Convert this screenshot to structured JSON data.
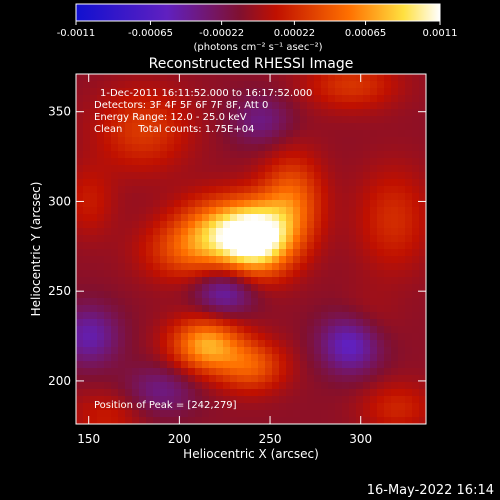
{
  "chart_data": {
    "type": "heatmap",
    "title": "Reconstructed RHESSI Image",
    "xlabel": "Heliocentric X (arcsec)",
    "ylabel": "Heliocentric Y (arcsec)",
    "xlim": [
      143,
      336
    ],
    "ylim": [
      176,
      371
    ],
    "x_ticks": [
      150,
      200,
      250,
      300
    ],
    "y_ticks": [
      200,
      250,
      300,
      350
    ],
    "colorbar": {
      "unit_label": "(photons cm⁻² s⁻¹ asec⁻²)",
      "range": [
        -0.0011,
        0.0011
      ],
      "ticks": [
        "-0.0011",
        "-0.00065",
        "-0.00022",
        "0.00022",
        "0.00065",
        "0.0011"
      ],
      "colormap": "blue-purple-red-yellow-white"
    },
    "annotations": [
      "1-Dec-2011 16:11:52.000 to 16:17:52.000",
      "Detectors: 3F 4F 5F 6F 7F 8F, Att 0",
      "Energy Range: 12.0 - 25.0 keV",
      "Clean     Total counts: 1.75E+04"
    ],
    "peak_label": "Position of Peak = [242,279]",
    "peak": [
      242,
      279
    ],
    "sources": [
      {
        "x": 242,
        "y": 279,
        "sx": 14,
        "sy": 14,
        "amp": 1.0
      },
      {
        "x": 220,
        "y": 285,
        "sx": 16,
        "sy": 13,
        "amp": 0.45
      },
      {
        "x": 262,
        "y": 300,
        "sx": 12,
        "sy": 18,
        "amp": 0.45
      },
      {
        "x": 205,
        "y": 272,
        "sx": 18,
        "sy": 12,
        "amp": 0.35
      },
      {
        "x": 215,
        "y": 220,
        "sx": 14,
        "sy": 11,
        "amp": 0.65
      },
      {
        "x": 240,
        "y": 208,
        "sx": 13,
        "sy": 10,
        "amp": 0.4
      },
      {
        "x": 180,
        "y": 340,
        "sx": 18,
        "sy": 16,
        "amp": 0.3
      },
      {
        "x": 295,
        "y": 365,
        "sx": 18,
        "sy": 10,
        "amp": 0.28
      },
      {
        "x": 318,
        "y": 290,
        "sx": 14,
        "sy": 20,
        "amp": 0.25
      },
      {
        "x": 300,
        "y": 230,
        "sx": 12,
        "sy": 12,
        "amp": 0.22
      },
      {
        "x": 320,
        "y": 185,
        "sx": 14,
        "sy": 10,
        "amp": 0.22
      },
      {
        "x": 160,
        "y": 180,
        "sx": 14,
        "sy": 10,
        "amp": 0.18
      },
      {
        "x": 150,
        "y": 300,
        "sx": 10,
        "sy": 14,
        "amp": 0.18
      },
      {
        "x": 225,
        "y": 250,
        "sx": 12,
        "sy": 10,
        "amp": -0.4
      },
      {
        "x": 295,
        "y": 222,
        "sx": 12,
        "sy": 12,
        "amp": -0.55
      },
      {
        "x": 150,
        "y": 225,
        "sx": 12,
        "sy": 12,
        "amp": -0.35
      },
      {
        "x": 245,
        "y": 345,
        "sx": 12,
        "sy": 10,
        "amp": -0.25
      },
      {
        "x": 190,
        "y": 195,
        "sx": 14,
        "sy": 10,
        "amp": -0.25
      }
    ]
  },
  "footer_timestamp": "16-May-2022 16:14"
}
